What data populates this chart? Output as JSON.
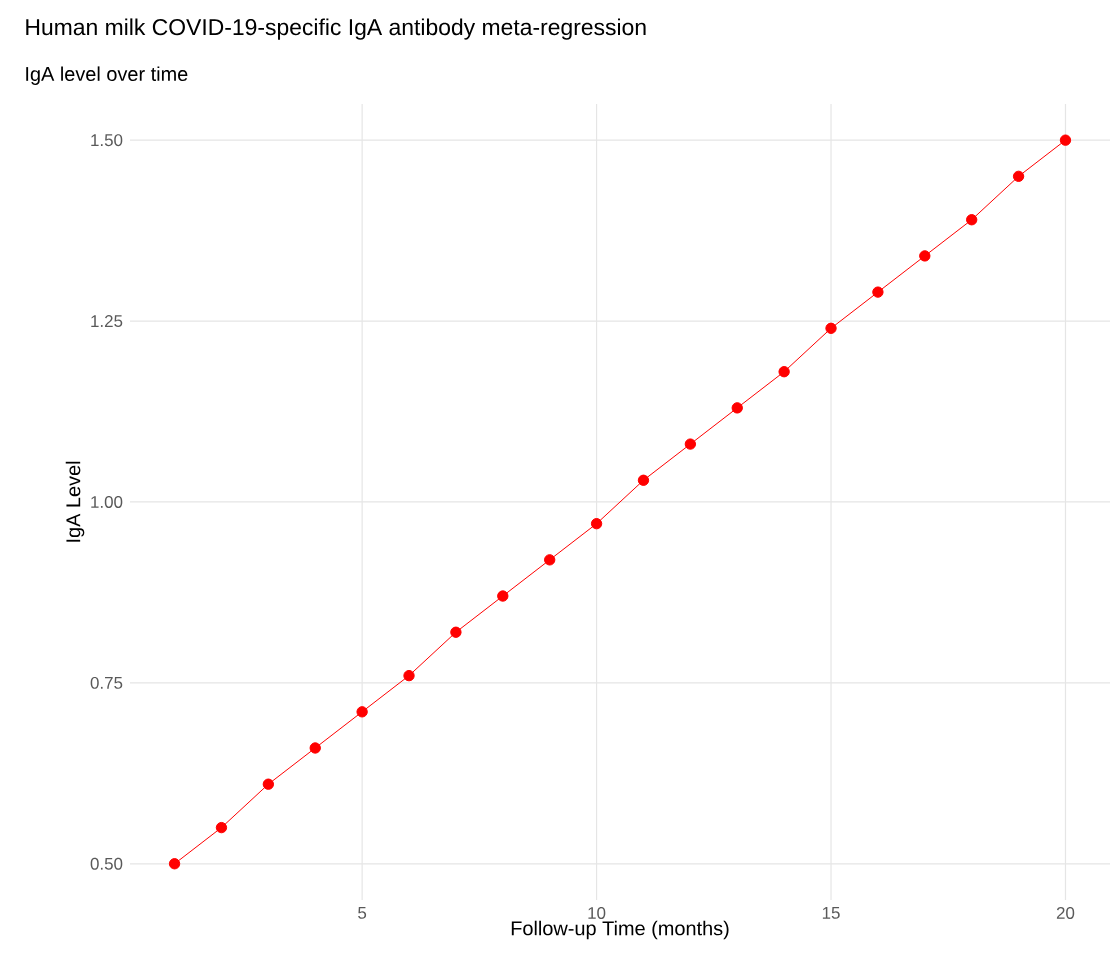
{
  "chart_data": {
    "type": "line",
    "title": "Human milk COVID-19-specific IgA antibody meta-regression",
    "subtitle": "IgA level over time",
    "xlabel": "Follow-up Time (months)",
    "ylabel": "IgA Level",
    "x": [
      1,
      2,
      3,
      4,
      5,
      6,
      7,
      8,
      9,
      10,
      11,
      12,
      13,
      14,
      15,
      16,
      17,
      18,
      19,
      20
    ],
    "series": [
      {
        "color": "#ff0000",
        "values": [
          0.5,
          0.55,
          0.61,
          0.66,
          0.71,
          0.76,
          0.82,
          0.87,
          0.92,
          0.97,
          1.03,
          1.08,
          1.13,
          1.18,
          1.24,
          1.29,
          1.34,
          1.39,
          1.45,
          1.5
        ]
      }
    ],
    "xlim": [
      0.05,
      20.95
    ],
    "ylim": [
      0.45,
      1.55
    ],
    "xticks": [
      5,
      10,
      15,
      20
    ],
    "yticks": [
      {
        "value": 0.5,
        "label": "0.50"
      },
      {
        "value": 0.75,
        "label": "0.75"
      },
      {
        "value": 1.0,
        "label": "1.00"
      },
      {
        "value": 1.25,
        "label": "1.25"
      },
      {
        "value": 1.5,
        "label": "1.50"
      }
    ],
    "grid": true,
    "marker": "circle",
    "line_style": "solid"
  }
}
